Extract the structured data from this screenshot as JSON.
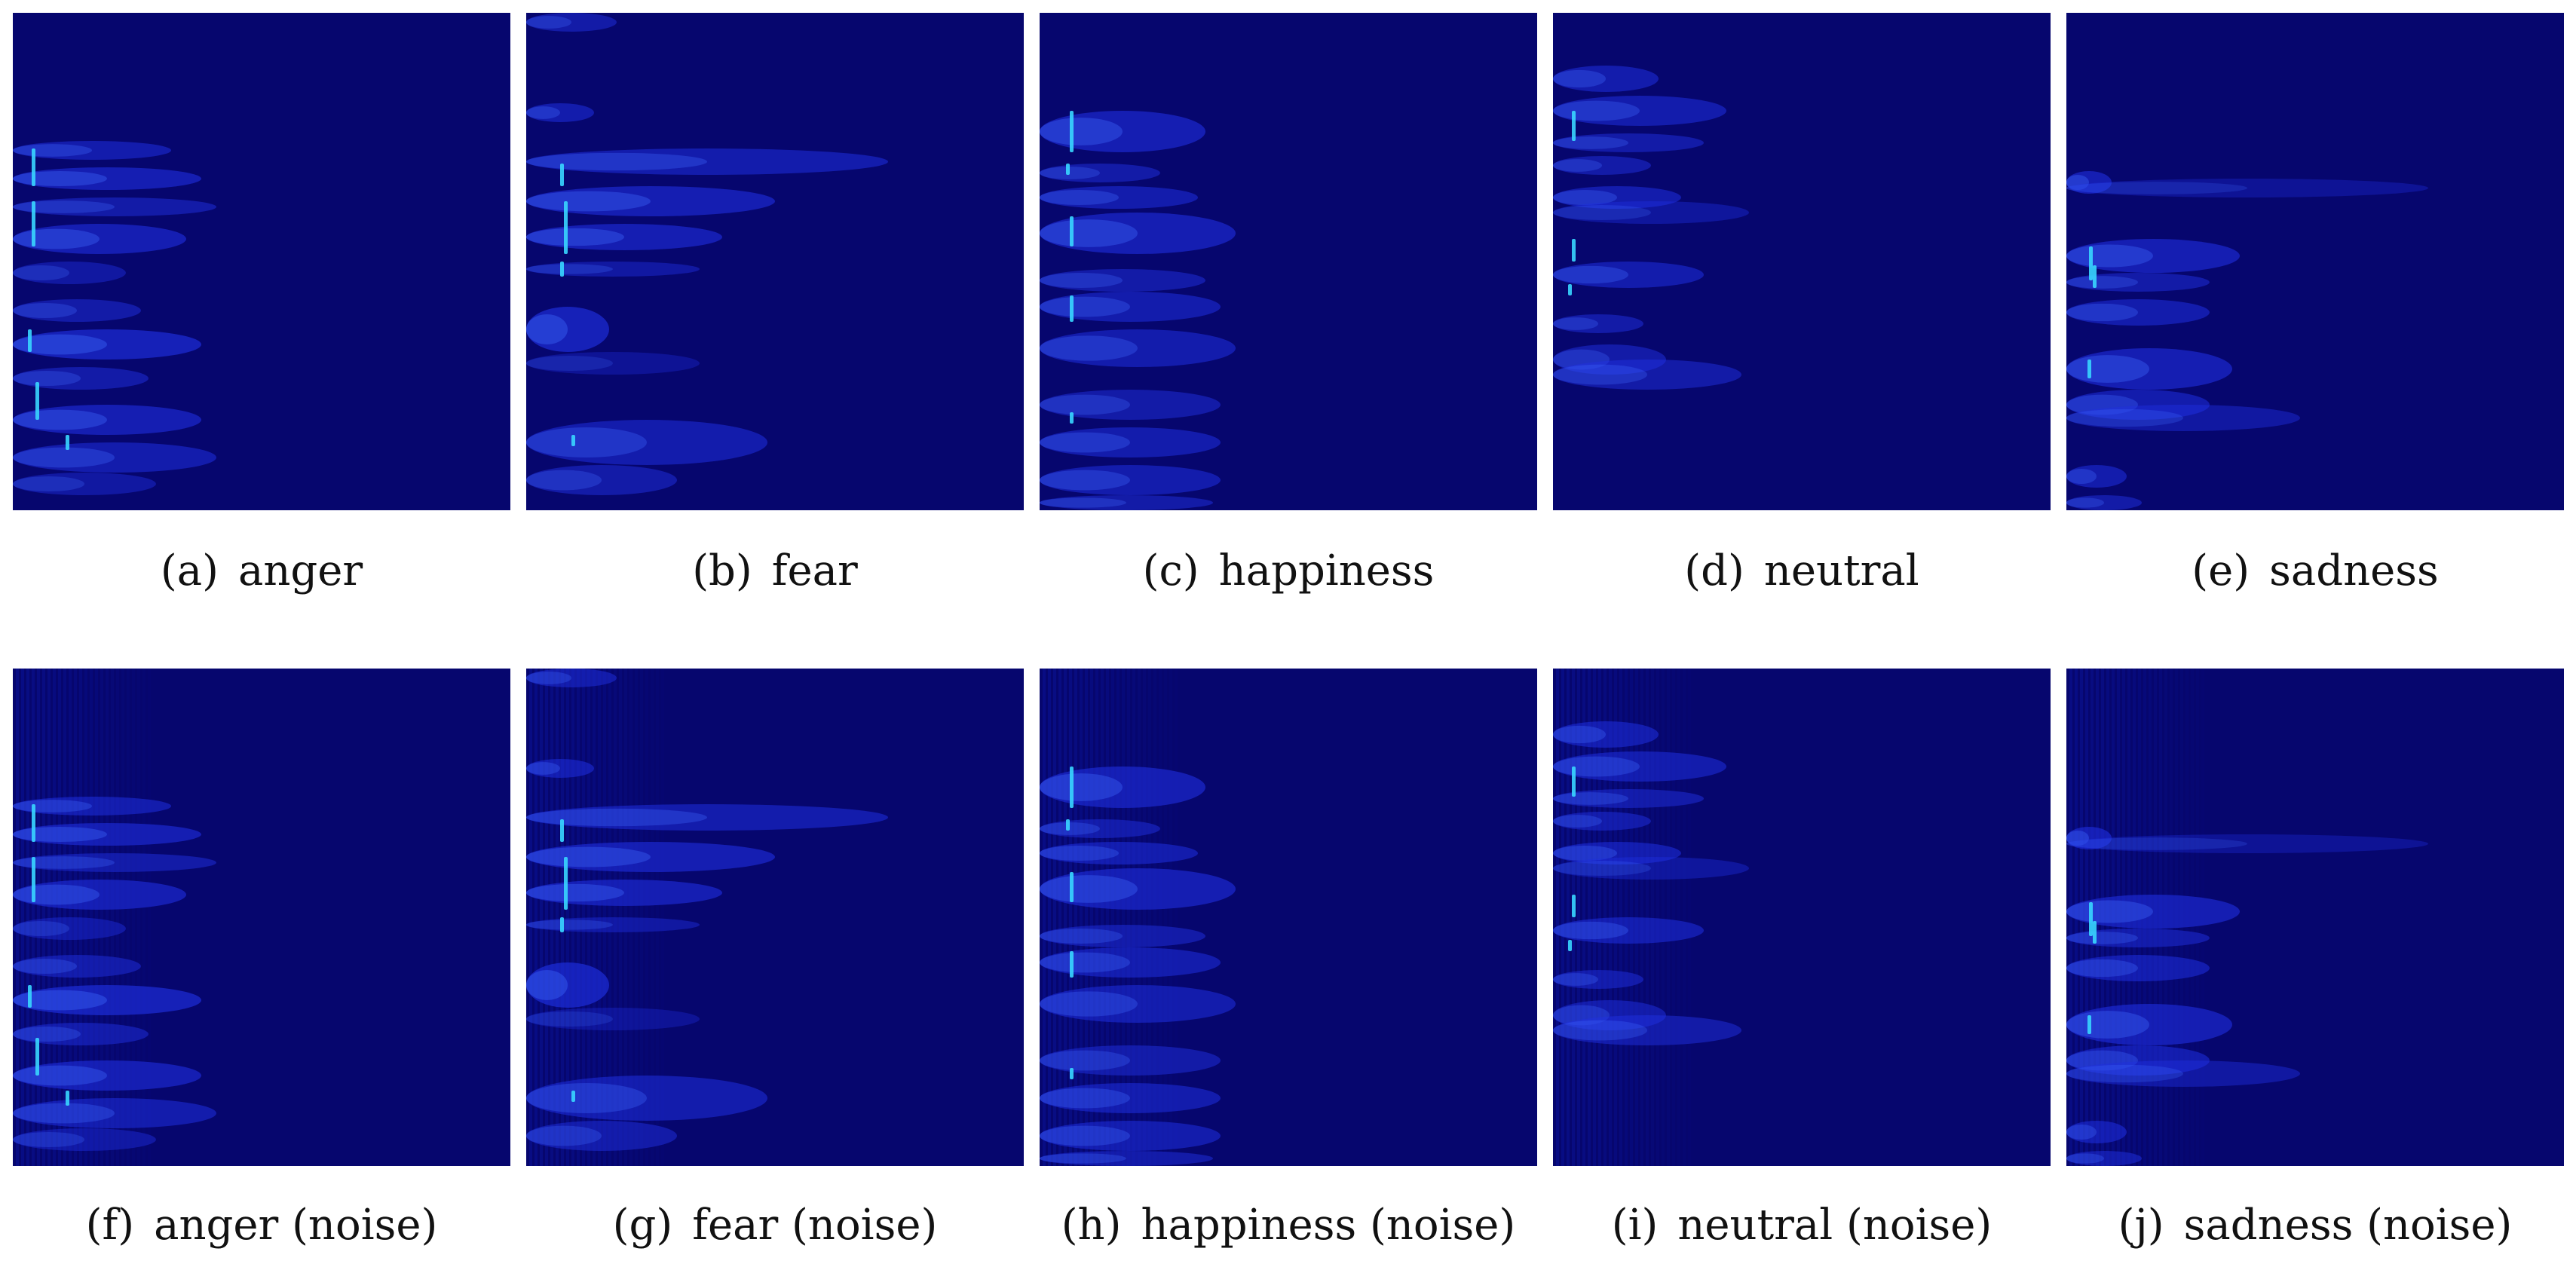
{
  "figure": {
    "panels": [
      {
        "tag": "(a)",
        "label": "anger",
        "pattern": "anger",
        "noise": false
      },
      {
        "tag": "(b)",
        "label": "fear",
        "pattern": "fear",
        "noise": false
      },
      {
        "tag": "(c)",
        "label": "happiness",
        "pattern": "happiness",
        "noise": false
      },
      {
        "tag": "(d)",
        "label": "neutral",
        "pattern": "neutral",
        "noise": false
      },
      {
        "tag": "(e)",
        "label": "sadness",
        "pattern": "sadness",
        "noise": false
      },
      {
        "tag": "(f)",
        "label": "anger (noise)",
        "pattern": "anger",
        "noise": true
      },
      {
        "tag": "(g)",
        "label": "fear (noise)",
        "pattern": "fear",
        "noise": true
      },
      {
        "tag": "(h)",
        "label": "happiness (noise)",
        "pattern": "happiness",
        "noise": true
      },
      {
        "tag": "(i)",
        "label": "neutral (noise)",
        "pattern": "neutral",
        "noise": true
      },
      {
        "tag": "(j)",
        "label": "sadness (noise)",
        "pattern": "sadness",
        "noise": true
      }
    ],
    "colors": {
      "background": "#06066e",
      "band": "#1f2fe0",
      "band_bright": "#3f6bff",
      "peak": "#39d6ff",
      "noise": "#0d1bb0"
    }
  }
}
